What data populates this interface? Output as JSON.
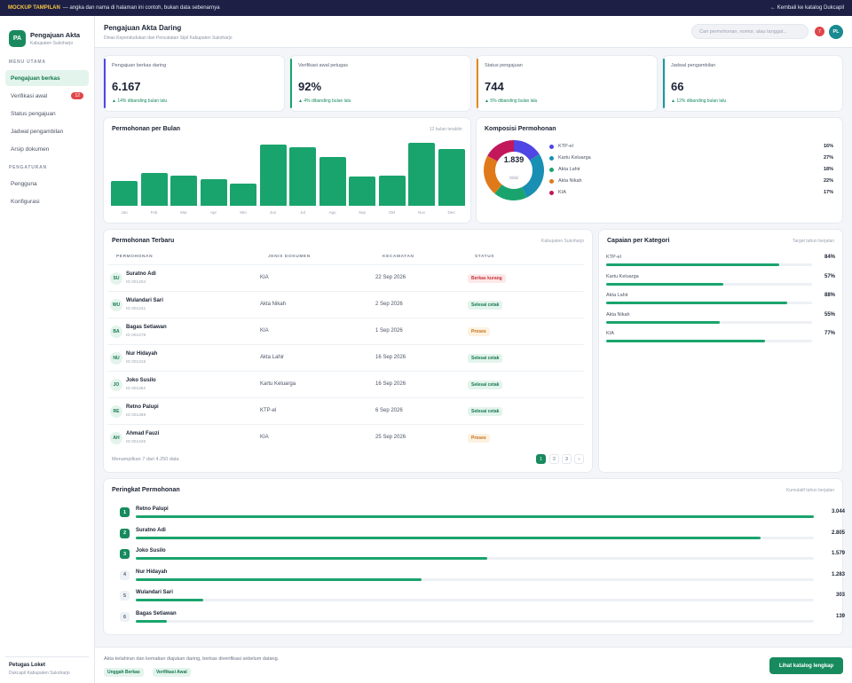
{
  "topbar": {
    "tag": "MOCKUP TAMPILAN",
    "text": "— angka dan nama di halaman ini contoh, bukan data sebenarnya",
    "back_link": "← Kembali ke katalog Dukcapil"
  },
  "sidebar": {
    "logo": "PA",
    "brand_title": "Pengajuan Akta",
    "brand_sub": "Kabupaten Sukoharjo",
    "section_main": "MENU UTAMA",
    "items": [
      {
        "label": "Pengajuan berkas"
      },
      {
        "label": "Verifikasi awal",
        "badge": "12"
      },
      {
        "label": "Status pengajuan"
      },
      {
        "label": "Jadwal pengambilan"
      },
      {
        "label": "Arsip dokumen"
      }
    ],
    "section_settings": "PENGATURAN",
    "settings_items": [
      {
        "label": "Pengguna"
      },
      {
        "label": "Konfigurasi"
      }
    ],
    "footer_title": "Petugas Loket",
    "footer_sub": "Dukcapil Kabupaten Sukoharjo"
  },
  "header": {
    "title": "Pengajuan Akta Daring",
    "subtitle": "Dinas Kependudukan dan Pencatatan Sipil Kabupaten Sukoharjo",
    "search_placeholder": "Cari permohonan, nomor, atau tanggal...",
    "notif_count": "7",
    "avatar": "PL"
  },
  "stats": [
    {
      "label": "Pengajuan berkas daring",
      "value": "6.167",
      "delta": "▲ 14% dibanding bulan lalu",
      "color": "#4f46e5"
    },
    {
      "label": "Verifikasi awal petugas",
      "value": "92%",
      "delta": "▲ 4% dibanding bulan lalu",
      "color": "#1aa46d"
    },
    {
      "label": "Status pengajuan",
      "value": "744",
      "delta": "▲ 5% dibanding bulan lalu",
      "color": "#e58a1f"
    },
    {
      "label": "Jadwal pengambilan",
      "value": "66",
      "delta": "▲ 12% dibanding bulan lalu",
      "color": "#1a9aa0"
    }
  ],
  "monthly": {
    "title": "Permohonan per Bulan",
    "sub": "12 bulan terakhir",
    "chart_data": {
      "type": "bar",
      "categories": [
        "Jan",
        "Feb",
        "Mar",
        "Apr",
        "Mei",
        "Jun",
        "Jul",
        "Agu",
        "Sep",
        "Okt",
        "Nov",
        "Des"
      ],
      "values": [
        40,
        53,
        49,
        44,
        36,
        100,
        95,
        79,
        48,
        49,
        103,
        93
      ],
      "ylim": [
        0,
        110
      ]
    }
  },
  "composition": {
    "title": "Komposisi Permohonan",
    "total": "1.839",
    "total_label": "total",
    "chart_data": {
      "type": "pie",
      "categories": [
        "KTP-el",
        "Kartu Keluarga",
        "Akta Lahir",
        "Akta Nikah",
        "KIA"
      ],
      "values": [
        16,
        27,
        18,
        22,
        17
      ],
      "labels": [
        "16%",
        "27%",
        "18%",
        "22%",
        "17%"
      ],
      "colors": [
        "#4f46e5",
        "#1a8fb4",
        "#1aa46d",
        "#e0791a",
        "#c2185b"
      ]
    }
  },
  "recent": {
    "title": "Permohonan Terbaru",
    "sub": "Kabupaten Sukoharjo",
    "columns": [
      "PERMOHONAN",
      "JENIS DOKUMEN",
      "KECAMATAN",
      "STATUS"
    ],
    "rows": [
      {
        "initials": "SU",
        "name": "Suratno Adi",
        "id": "ID 001204",
        "doc": "KIA",
        "date": "22 Sep 2026",
        "status": "Berkas kurang",
        "tone": "red"
      },
      {
        "initials": "WU",
        "name": "Wulandari Sari",
        "id": "ID 001241",
        "doc": "Akta Nikah",
        "date": "2 Sep 2026",
        "status": "Selesai cetak",
        "tone": "green"
      },
      {
        "initials": "BA",
        "name": "Bagas Setiawan",
        "id": "ID 001278",
        "doc": "KIA",
        "date": "1 Sep 2026",
        "status": "Proses",
        "tone": "orange"
      },
      {
        "initials": "NU",
        "name": "Nur Hidayah",
        "id": "ID 001315",
        "doc": "Akta Lahir",
        "date": "16 Sep 2026",
        "status": "Selesai cetak",
        "tone": "green"
      },
      {
        "initials": "JO",
        "name": "Joko Susilo",
        "id": "ID 001352",
        "doc": "Kartu Keluarga",
        "date": "16 Sep 2026",
        "status": "Selesai cetak",
        "tone": "green"
      },
      {
        "initials": "RE",
        "name": "Retno Palupi",
        "id": "ID 001389",
        "doc": "KTP-el",
        "date": "6 Sep 2026",
        "status": "Selesai cetak",
        "tone": "green"
      },
      {
        "initials": "AH",
        "name": "Ahmad Fauzi",
        "id": "ID 001426",
        "doc": "KIA",
        "date": "25 Sep 2026",
        "status": "Proses",
        "tone": "orange"
      }
    ],
    "footer": "Menampilkan 7 dari 4.250 data",
    "pages": [
      "1",
      "2",
      "3",
      "›"
    ]
  },
  "achievement": {
    "title": "Capaian per Kategori",
    "sub": "Target tahun berjalan",
    "chart_data": {
      "type": "bar",
      "categories": [
        "KTP-el",
        "Kartu Keluarga",
        "Akta Lahir",
        "Akta Nikah",
        "KIA"
      ],
      "values": [
        84,
        57,
        88,
        55,
        77
      ],
      "labels": [
        "84%",
        "57%",
        "88%",
        "55%",
        "77%"
      ],
      "ylim": [
        0,
        100
      ]
    }
  },
  "ranking": {
    "title": "Peringkat Permohonan",
    "sub": "Kumulatif tahun berjalan",
    "chart_data": {
      "type": "bar",
      "categories": [
        "Retno Palupi",
        "Suratno Adi",
        "Joko Susilo",
        "Nur Hidayah",
        "Wulandari Sari",
        "Bagas Setiawan"
      ],
      "values": [
        3044,
        2805,
        1579,
        1283,
        303,
        139
      ],
      "labels": [
        "3.044",
        "2.805",
        "1.579",
        "1.283",
        "303",
        "139"
      ],
      "ranks": [
        "1",
        "2",
        "3",
        "4",
        "5",
        "6"
      ]
    }
  },
  "footer": {
    "text": "Akta kelahiran dan kematian diajukan daring, berkas diverifikasi sebelum datang.",
    "chips": [
      "Unggah Berkas",
      "Verifikasi Awal"
    ],
    "cta": "Lihat katalog lengkap"
  }
}
